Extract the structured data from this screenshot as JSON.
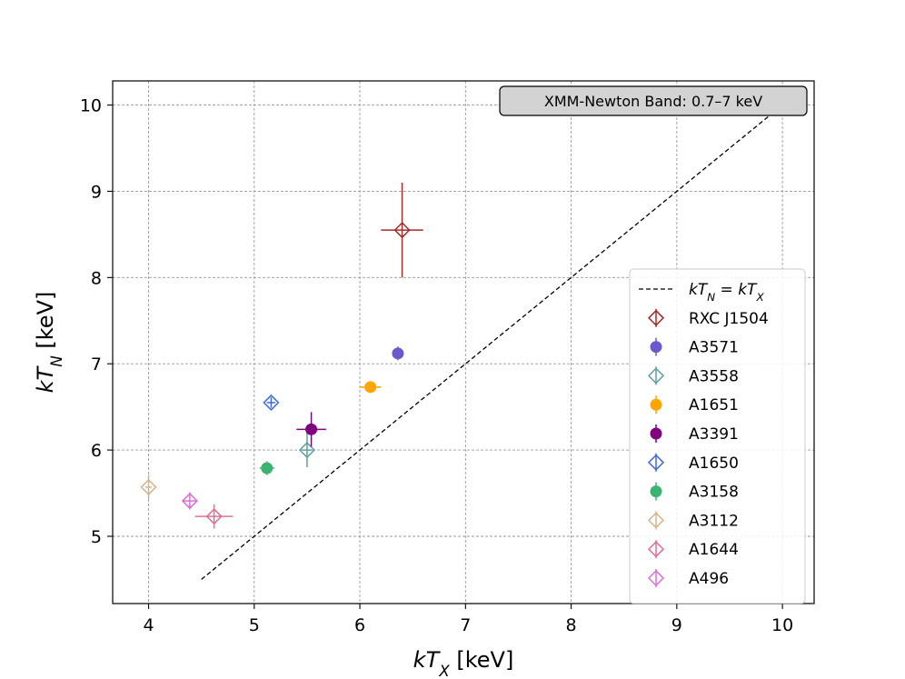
{
  "chart_data": {
    "type": "scatter",
    "xlabel": {
      "main": "kT",
      "sub": "X",
      "unit": " [keV]"
    },
    "ylabel": {
      "main": "kT",
      "sub": "N",
      "unit": " [keV]"
    },
    "xlim": [
      3.66,
      10.3
    ],
    "ylim": [
      4.22,
      10.28
    ],
    "xticks": [
      4,
      5,
      6,
      7,
      8,
      9,
      10
    ],
    "yticks": [
      5,
      6,
      7,
      8,
      9,
      10
    ],
    "grid": true,
    "annotation": "XMM-Newton Band: 0.7–7 keV",
    "legend_position": "lower-right",
    "reference_line": {
      "label": {
        "a": "kT",
        "a_sub": "N",
        "eq": " = ",
        "b": "kT",
        "b_sub": "X"
      },
      "x": [
        4.5,
        10.0
      ],
      "y": [
        4.5,
        10.0
      ],
      "color": "#000000",
      "style": "dashed"
    },
    "series": [
      {
        "name": "RXC J1504",
        "x": 6.4,
        "y": 8.55,
        "xerr": 0.2,
        "yerr": 0.55,
        "marker": "open-diamond",
        "color": "#a52a2a"
      },
      {
        "name": "A3571",
        "x": 6.36,
        "y": 7.12,
        "xerr": 0.04,
        "yerr": 0.08,
        "marker": "filled-circle",
        "color": "#6a5acd"
      },
      {
        "name": "A3558",
        "x": 5.5,
        "y": 6.0,
        "xerr": 0.05,
        "yerr": 0.2,
        "marker": "open-diamond",
        "color": "#5f9ea0"
      },
      {
        "name": "A1651",
        "x": 6.1,
        "y": 6.73,
        "xerr": 0.1,
        "yerr": 0.06,
        "marker": "filled-circle",
        "color": "#ffa500"
      },
      {
        "name": "A3391",
        "x": 5.54,
        "y": 6.24,
        "xerr": 0.14,
        "yerr": 0.2,
        "marker": "filled-circle",
        "color": "#800080"
      },
      {
        "name": "A1650",
        "x": 5.16,
        "y": 6.55,
        "xerr": 0.04,
        "yerr": 0.06,
        "marker": "open-diamond",
        "color": "#4169e1"
      },
      {
        "name": "A3158",
        "x": 5.12,
        "y": 5.79,
        "xerr": 0.07,
        "yerr": 0.08,
        "marker": "filled-circle",
        "color": "#3cb371"
      },
      {
        "name": "A3112",
        "x": 4.0,
        "y": 5.57,
        "xerr": 0.03,
        "yerr": 0.14,
        "marker": "open-diamond",
        "color": "#d2b48c"
      },
      {
        "name": "A1644",
        "x": 4.62,
        "y": 5.23,
        "xerr": 0.18,
        "yerr": 0.14,
        "marker": "open-diamond",
        "color": "#db7093"
      },
      {
        "name": "A496",
        "x": 4.39,
        "y": 5.41,
        "xerr": 0.06,
        "yerr": 0.1,
        "marker": "open-diamond",
        "color": "#da70d6"
      }
    ]
  }
}
